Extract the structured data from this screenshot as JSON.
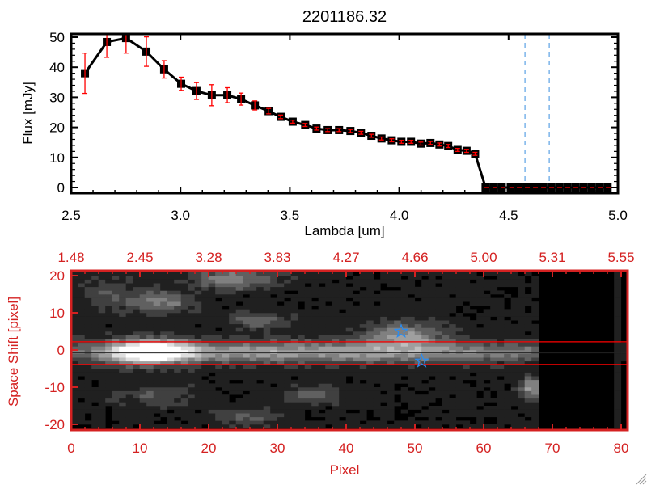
{
  "title": "2201186.32",
  "colors": {
    "accent_red": "#d42121",
    "errorbar": "#ff0000",
    "marker": "#000000",
    "dashed_vline": "#3a8fe0",
    "star": "#2a8cf0"
  },
  "chart_data": [
    {
      "type": "line",
      "title": "2201186.32",
      "xlabel": "Lambda [um]",
      "ylabel": "Flux [mJy]",
      "xlim": [
        2.5,
        5.0
      ],
      "ylim": [
        -1,
        52
      ],
      "xticks": [
        "2.5",
        "3.0",
        "3.5",
        "4.0",
        "4.5",
        "5.0"
      ],
      "xtick_values": [
        2.5,
        3.0,
        3.5,
        4.0,
        4.5,
        5.0
      ],
      "yticks": [
        "0",
        "10",
        "20",
        "30",
        "40",
        "50"
      ],
      "ytick_values": [
        0,
        10,
        20,
        30,
        40,
        50
      ],
      "series": [
        {
          "name": "flux",
          "x": [
            2.563,
            2.663,
            2.751,
            2.844,
            2.925,
            3.003,
            3.073,
            3.143,
            3.214,
            3.277,
            3.34,
            3.403,
            3.458,
            3.513,
            3.57,
            3.622,
            3.673,
            3.725,
            3.777,
            3.825,
            3.873,
            3.919,
            3.966,
            4.01,
            4.054,
            4.099,
            4.143,
            4.184,
            4.224,
            4.267,
            4.308,
            4.347,
            4.395,
            4.432,
            4.469,
            4.51,
            4.547,
            4.584,
            4.621,
            4.657,
            4.694,
            4.731,
            4.768,
            4.805,
            4.842,
            4.879,
            4.916,
            4.953
          ],
          "y": [
            38.0,
            48.4,
            49.7,
            45.2,
            39.3,
            34.5,
            32.1,
            30.7,
            30.7,
            29.4,
            27.3,
            25.4,
            23.5,
            21.9,
            20.8,
            19.6,
            19.1,
            19.1,
            18.8,
            18.2,
            17.2,
            16.3,
            15.7,
            15.2,
            15.2,
            14.6,
            14.8,
            14.3,
            13.8,
            12.5,
            12.2,
            11.2,
            0,
            0,
            0,
            0,
            0,
            0,
            0,
            0,
            0,
            0,
            0,
            0,
            0,
            0,
            0,
            0
          ],
          "yerr": [
            6.7,
            5.1,
            5.0,
            4.9,
            2.9,
            2.2,
            2.8,
            3.5,
            2.5,
            2.0,
            1.5,
            0.9,
            0.6,
            0.5,
            0.5,
            0.5,
            0.5,
            0.5,
            0.5,
            0.5,
            0.5,
            0.5,
            0.5,
            0.5,
            0.5,
            0.5,
            0.5,
            0.5,
            0.5,
            0.5,
            0.5,
            0.5,
            0,
            0,
            0,
            0,
            0,
            0,
            0,
            0,
            0,
            0,
            0,
            0,
            0,
            0,
            0,
            0
          ]
        }
      ],
      "vlines_dashed": [
        4.575,
        4.686
      ],
      "hline_dashed": 0
    },
    {
      "type": "heatmap",
      "xlabel": "Pixel",
      "ylabel": "Space Shift [pixel]",
      "xlim": [
        0,
        81
      ],
      "ylim": [
        -21,
        21
      ],
      "xticks": [
        "0",
        "10",
        "20",
        "30",
        "40",
        "50",
        "60",
        "70",
        "80"
      ],
      "xtick_values": [
        0,
        10,
        20,
        30,
        40,
        50,
        60,
        70,
        80
      ],
      "top_xticks": [
        "1.48",
        "2.45",
        "3.28",
        "3.83",
        "4.27",
        "4.66",
        "5.00",
        "5.31",
        "5.55"
      ],
      "yticks": [
        "-20",
        "-10",
        "0",
        "10",
        "20"
      ],
      "ytick_values": [
        -20,
        -10,
        0,
        10,
        20
      ],
      "extraction_lines_red": [
        2.2,
        -3.9
      ],
      "trace_line_black": -0.8,
      "star_markers": [
        {
          "x": 48,
          "y": 5
        },
        {
          "x": 51,
          "y": -3
        }
      ],
      "sources": [
        {
          "x": 11,
          "y": -0.5,
          "peak": 1.0,
          "sx": 4,
          "sy": 2.2
        },
        {
          "x": 35,
          "y": -0.5,
          "peak": 0.55,
          "sx": 30,
          "sy": 2.0
        },
        {
          "x": 48,
          "y": 4,
          "peak": 0.45,
          "sx": 4,
          "sy": 2.5
        },
        {
          "x": 13,
          "y": 13,
          "peak": 0.4,
          "sx": 3,
          "sy": 2
        },
        {
          "x": 23,
          "y": 19,
          "peak": 0.45,
          "sx": 4,
          "sy": 1.8
        },
        {
          "x": 27,
          "y": 8,
          "peak": 0.3,
          "sx": 3,
          "sy": 1.5
        },
        {
          "x": 35,
          "y": -12,
          "peak": 0.28,
          "sx": 3,
          "sy": 1.5
        },
        {
          "x": 12,
          "y": -12,
          "peak": 0.22,
          "sx": 4,
          "sy": 2
        },
        {
          "x": 25,
          "y": -18,
          "peak": 0.25,
          "sx": 3,
          "sy": 1.5
        },
        {
          "x": 66.5,
          "y": -10,
          "peak": 0.55,
          "sx": 1.2,
          "sy": 2
        },
        {
          "x": 5,
          "y": 15,
          "peak": 0.18,
          "sx": 3,
          "sy": 3
        }
      ]
    }
  ]
}
